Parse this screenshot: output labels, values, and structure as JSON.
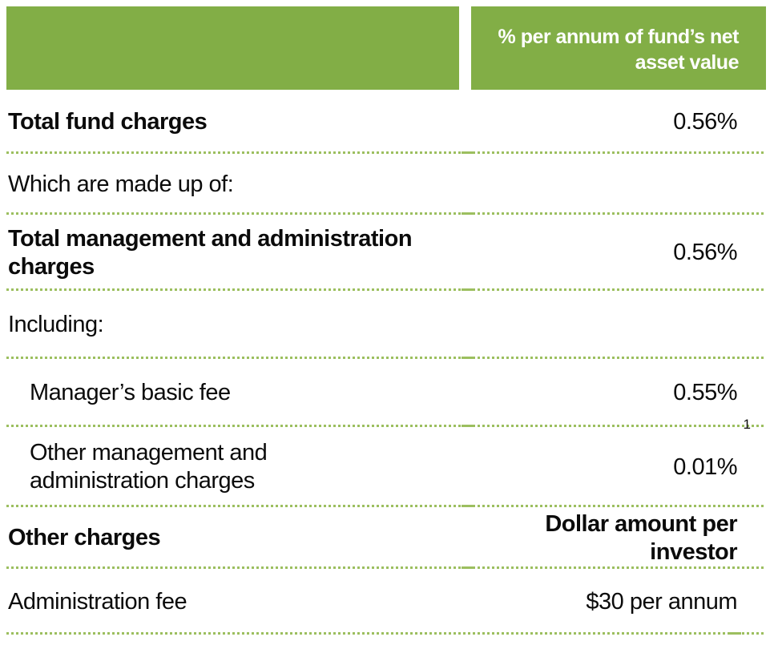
{
  "colors": {
    "header_green": "#82AE46",
    "dotted_line_green": "#9CBF5F",
    "text": "#0B0B0B",
    "header_text": "#FFFFFF"
  },
  "header": {
    "left_label": "",
    "right_label": "% per annum of fund’s net\nasset value"
  },
  "rows": [
    {
      "label": "Total fund charges",
      "value": "0.56%"
    },
    {
      "label": "Which are made up of:",
      "value": ""
    },
    {
      "label": "Total management and administration\ncharges",
      "value": "0.56%"
    },
    {
      "label": "Including:",
      "value": ""
    },
    {
      "label": "Manager’s basic fee",
      "value": "0.55%"
    },
    {
      "label": "Other management and\nadministration charges",
      "value": "0.01%",
      "footnote_marker": "1"
    },
    {
      "label": "Other charges",
      "value": "Dollar amount per investor"
    },
    {
      "label": "Administration fee",
      "value": "$30 per annum"
    }
  ]
}
